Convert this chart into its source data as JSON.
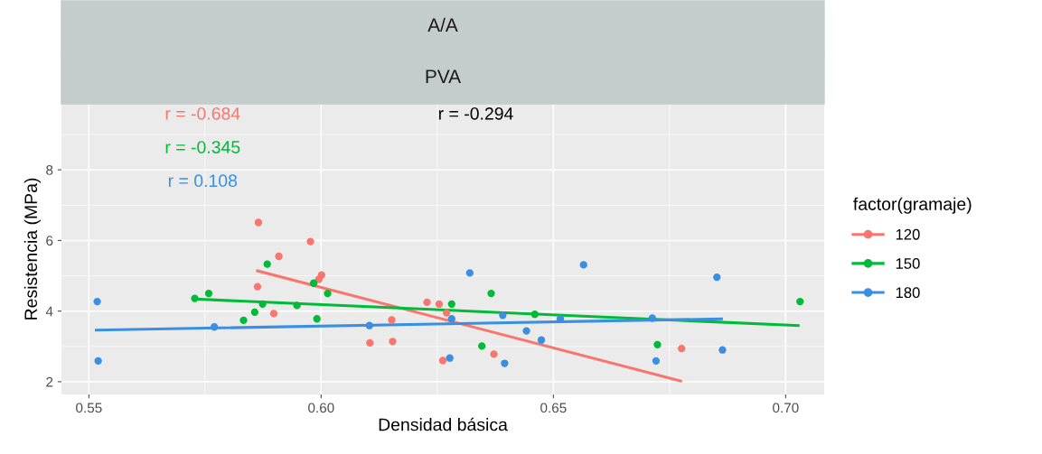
{
  "chart_data": {
    "type": "scatter",
    "title": "A/A",
    "subtitle": "PVA",
    "xlabel": "Densidad básica",
    "ylabel": "Resistencia (MPa)",
    "legend_title": "factor(gramaje)",
    "xlim": [
      0.5441,
      0.7083
    ],
    "ylim": [
      1.64,
      9.87
    ],
    "xticks": [
      0.55,
      {
        "value": 0.6,
        "label": "0.60"
      },
      0.65,
      {
        "value": 0.7,
        "label": "0.70"
      }
    ],
    "yticks": [
      2,
      4,
      6,
      8
    ],
    "grid": true,
    "legend": "right",
    "annotations": [
      "r = -0.684",
      "r = -0.345",
      "r = 0.108",
      "r = -0.294"
    ],
    "series": [
      {
        "name": "120",
        "color": "#f8766d",
        "marker": "circle",
        "x": [
          0.5865,
          0.5977,
          0.5909,
          0.6001,
          0.5995,
          0.5863,
          0.5898,
          0.6152,
          0.6105,
          0.6154,
          0.6228,
          0.6254,
          0.6262,
          0.627,
          0.6372,
          0.6776
        ],
        "values": [
          6.51,
          5.97,
          5.55,
          5.02,
          4.9,
          4.69,
          3.93,
          3.75,
          3.1,
          3.14,
          4.25,
          4.2,
          2.6,
          3.95,
          2.78,
          2.94
        ]
      },
      {
        "name": "150",
        "color": "#00ba38",
        "marker": "circle",
        "x": [
          0.5728,
          0.5758,
          0.5884,
          0.5833,
          0.5857,
          0.5874,
          0.5948,
          0.5984,
          0.5991,
          0.6014,
          0.6281,
          0.6366,
          0.6346,
          0.646,
          0.6724,
          0.7031
        ],
        "values": [
          4.36,
          4.5,
          5.33,
          3.74,
          3.97,
          4.2,
          4.16,
          4.79,
          3.78,
          4.5,
          4.2,
          4.5,
          3.01,
          3.91,
          3.05,
          4.27
        ]
      },
      {
        "name": "180",
        "color": "#3a8fe0",
        "marker": "circle",
        "x": [
          0.5518,
          0.552,
          0.577,
          0.6104,
          0.632,
          0.6565,
          0.6852,
          0.6864,
          0.6721,
          0.6395,
          0.6277,
          0.6442,
          0.6474,
          0.6391,
          0.6281,
          0.6515,
          0.6713
        ],
        "values": [
          4.27,
          2.59,
          3.55,
          3.59,
          5.08,
          5.31,
          4.96,
          2.9,
          2.59,
          2.52,
          2.67,
          3.44,
          3.18,
          3.88,
          3.78,
          3.78,
          3.8
        ]
      },
      {
        "type": "line",
        "color": "#f8766d",
        "x": [
          0.5863,
          0.6774
        ],
        "values": [
          5.14,
          2.02
        ]
      },
      {
        "type": "line",
        "color": "#00ba38",
        "x": [
          0.5728,
          0.7027
        ],
        "values": [
          4.34,
          3.59
        ]
      },
      {
        "type": "line",
        "color": "#3a8fe0",
        "x": [
          0.5516,
          0.6862
        ],
        "values": [
          3.46,
          3.78
        ]
      }
    ]
  }
}
